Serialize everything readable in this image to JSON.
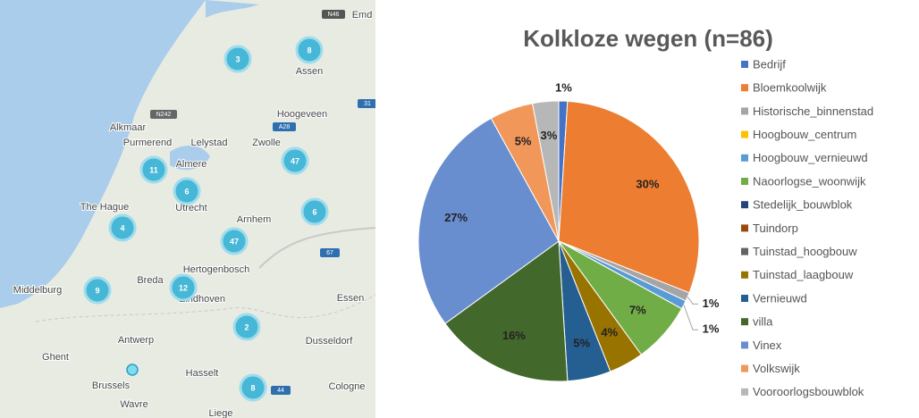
{
  "map": {
    "cities": [
      "Emd",
      "Assen",
      "Hoogeveen",
      "Alkmaar",
      "Purmerend",
      "Lelystad",
      "Zwolle",
      "Almere",
      "The Hague",
      "Utrecht",
      "Arnhem",
      "Hertogenbosch",
      "Middelburg",
      "Breda",
      "Eindhoven",
      "Essen",
      "Antwerp",
      "Dusseldorf",
      "Ghent",
      "Hasselt",
      "Brussels",
      "Wavre",
      "Cologne",
      "Liege"
    ],
    "road_signs": [
      "N46",
      "N242",
      "A28",
      "31",
      "67",
      "44"
    ],
    "clusters": [
      "3",
      "8",
      "11",
      "6",
      "47",
      "6",
      "4",
      "47",
      "9",
      "12",
      "2",
      "8"
    ]
  },
  "chart_data": {
    "type": "pie",
    "title": "Kolkloze wegen (n=86)",
    "categories": [
      "Bedrijf",
      "Bloemkoolwijk",
      "Historische_binnenstad",
      "Hoogbouw_centrum",
      "Hoogbouw_vernieuwd",
      "Naoorlogse_woonwijk",
      "Stedelijk_bouwblok",
      "Tuindorp",
      "Tuinstad_hoogbouw",
      "Tuinstad_laagbouw",
      "Vernieuwd",
      "villa",
      "Vinex",
      "Volkswijk",
      "Vooroorlogsbouwblok"
    ],
    "values": [
      1,
      30,
      1,
      0,
      1,
      7,
      0,
      0,
      0,
      4,
      5,
      16,
      27,
      5,
      3
    ],
    "value_labels": [
      "1%",
      "30%",
      "1%",
      null,
      "1%",
      "7%",
      null,
      null,
      null,
      "4%",
      "5%",
      "16%",
      "27%",
      "5%",
      "3%"
    ],
    "colors": [
      "#4472c4",
      "#ed7d31",
      "#a5a5a5",
      "#ffc000",
      "#5b9bd5",
      "#70ad47",
      "#264478",
      "#9e480e",
      "#636363",
      "#997300",
      "#255e91",
      "#43682b",
      "#698ed0",
      "#f1975a",
      "#b7b7b7"
    ],
    "legend": "right"
  }
}
